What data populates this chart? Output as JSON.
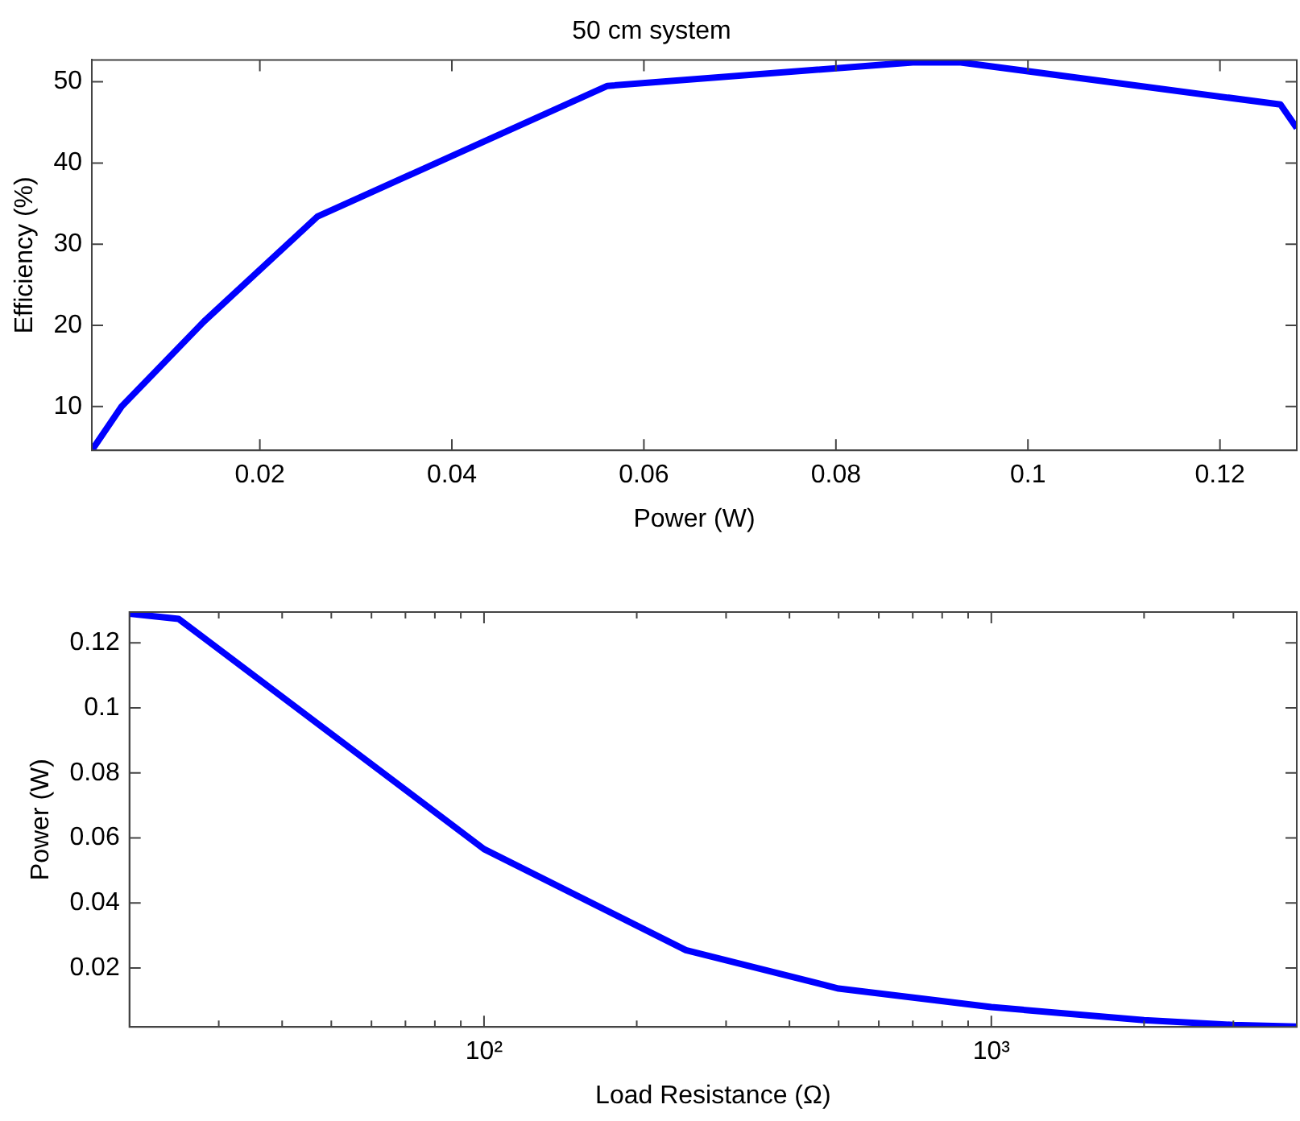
{
  "chart_data": [
    {
      "type": "line",
      "title": "50 cm system",
      "xlabel": "Power (W)",
      "ylabel": "Efficiency (%)",
      "legend": false,
      "grid": false,
      "marker": "none",
      "line_style": "solid",
      "xlim": [
        0.0025,
        0.128
      ],
      "ylim": [
        4.6,
        52.7
      ],
      "xticks": [
        0.02,
        0.04,
        0.06,
        0.08,
        0.1,
        0.12
      ],
      "yticks": [
        10,
        20,
        30,
        40,
        50
      ],
      "series": [
        {
          "color": "#0000ff",
          "x": [
            0.0025,
            0.0056,
            0.0142,
            0.026,
            0.0562,
            0.088,
            0.093,
            0.1263,
            0.128
          ],
          "values": [
            4.6,
            10,
            20.5,
            33.4,
            49.5,
            52.4,
            52.4,
            47.2,
            44.3
          ]
        }
      ]
    },
    {
      "type": "line",
      "xlabel": "Load Resistance (Ω)",
      "ylabel": "Power (W)",
      "legend": false,
      "grid": false,
      "marker": "none",
      "line_style": "solid",
      "log": "x",
      "xlim": [
        20,
        4000
      ],
      "ylim": [
        0.0019,
        0.1295
      ],
      "xticks": [
        {
          "value": 30,
          "label": null
        },
        {
          "value": 40,
          "label": null
        },
        {
          "value": 50,
          "label": null
        },
        {
          "value": 60,
          "label": null
        },
        {
          "value": 70,
          "label": null
        },
        {
          "value": 80,
          "label": null
        },
        {
          "value": 90,
          "label": null
        },
        {
          "value": 100,
          "label": "10²"
        },
        {
          "value": 200,
          "label": null
        },
        {
          "value": 300,
          "label": null
        },
        {
          "value": 400,
          "label": null
        },
        {
          "value": 500,
          "label": null
        },
        {
          "value": 600,
          "label": null
        },
        {
          "value": 700,
          "label": null
        },
        {
          "value": 800,
          "label": null
        },
        {
          "value": 900,
          "label": null
        },
        {
          "value": 1000,
          "label": "10³"
        },
        {
          "value": 2000,
          "label": null
        },
        {
          "value": 3000,
          "label": null
        }
      ],
      "yticks": [
        0.02,
        0.04,
        0.06,
        0.08,
        0.1,
        0.12
      ],
      "series": [
        {
          "color": "#0000ff",
          "x": [
            20,
            25,
            100,
            250,
            500,
            1000,
            2000,
            3000,
            4000
          ],
          "values": [
            0.129,
            0.1274,
            0.0566,
            0.0255,
            0.0137,
            0.008,
            0.004,
            0.0025,
            0.002
          ]
        }
      ]
    }
  ]
}
